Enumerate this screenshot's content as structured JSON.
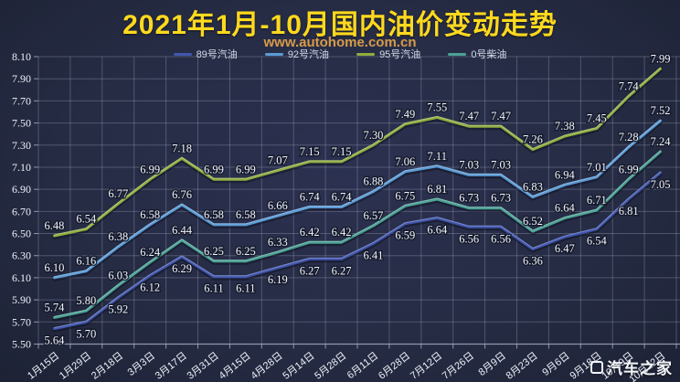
{
  "header": {
    "title": "2021年1月-10月国内油价变动走势",
    "subtitle": "www.autohome.com.cn"
  },
  "watermark": {
    "label": "汽车之家"
  },
  "colors": {
    "background": "#262c44",
    "title": "#ffd91e",
    "subtitle": "#d89b4a",
    "grid": "#aab2c8",
    "axis_text": "#eef1f8",
    "value_label": "#f2f4fa"
  },
  "chart_data": {
    "type": "line",
    "title": "2021年1月-10月国内油价变动走势",
    "subtitle": "www.autohome.com.cn",
    "xlabel": "",
    "ylabel": "",
    "ylim": [
      5.5,
      8.1
    ],
    "y_tick_step": 0.2,
    "grid": true,
    "legend_position": "top",
    "x_categories": [
      "1月15日",
      "1月29日",
      "2月18日",
      "3月3日",
      "3月17日",
      "3月31日",
      "4月15日",
      "4月28日",
      "5月14日",
      "5月28日",
      "6月11日",
      "6月28日",
      "7月12日",
      "7月26日",
      "8月9日",
      "8月23日",
      "9月6日",
      "9月18日",
      "10月9日",
      "10月22日"
    ],
    "series": [
      {
        "name": "89号汽油",
        "color": "#4156ae",
        "label_position": "below",
        "values": [
          5.64,
          5.7,
          5.92,
          6.12,
          6.29,
          6.11,
          6.11,
          6.19,
          6.27,
          6.27,
          6.41,
          6.59,
          6.64,
          6.56,
          6.56,
          6.36,
          6.47,
          6.54,
          6.81,
          7.05
        ]
      },
      {
        "name": "92号汽油",
        "color": "#5c9bd4",
        "label_position": "above",
        "values": [
          6.1,
          6.16,
          6.38,
          6.58,
          6.76,
          6.58,
          6.58,
          6.66,
          6.74,
          6.74,
          6.88,
          7.06,
          7.11,
          7.03,
          7.03,
          6.83,
          6.94,
          7.01,
          7.28,
          7.52
        ]
      },
      {
        "name": "95号汽油",
        "color": "#8fae3f",
        "label_position": "above",
        "values": [
          6.48,
          6.54,
          6.77,
          6.99,
          7.18,
          6.99,
          6.99,
          7.07,
          7.15,
          7.15,
          7.3,
          7.49,
          7.55,
          7.47,
          7.47,
          7.26,
          7.38,
          7.45,
          7.74,
          7.99
        ]
      },
      {
        "name": "0号柴油",
        "color": "#4aa193",
        "label_position": "above",
        "values": [
          5.74,
          5.8,
          6.03,
          6.24,
          6.44,
          6.25,
          6.25,
          6.33,
          6.42,
          6.42,
          6.57,
          6.75,
          6.81,
          6.73,
          6.73,
          6.52,
          6.64,
          6.71,
          6.99,
          7.24
        ]
      }
    ]
  }
}
